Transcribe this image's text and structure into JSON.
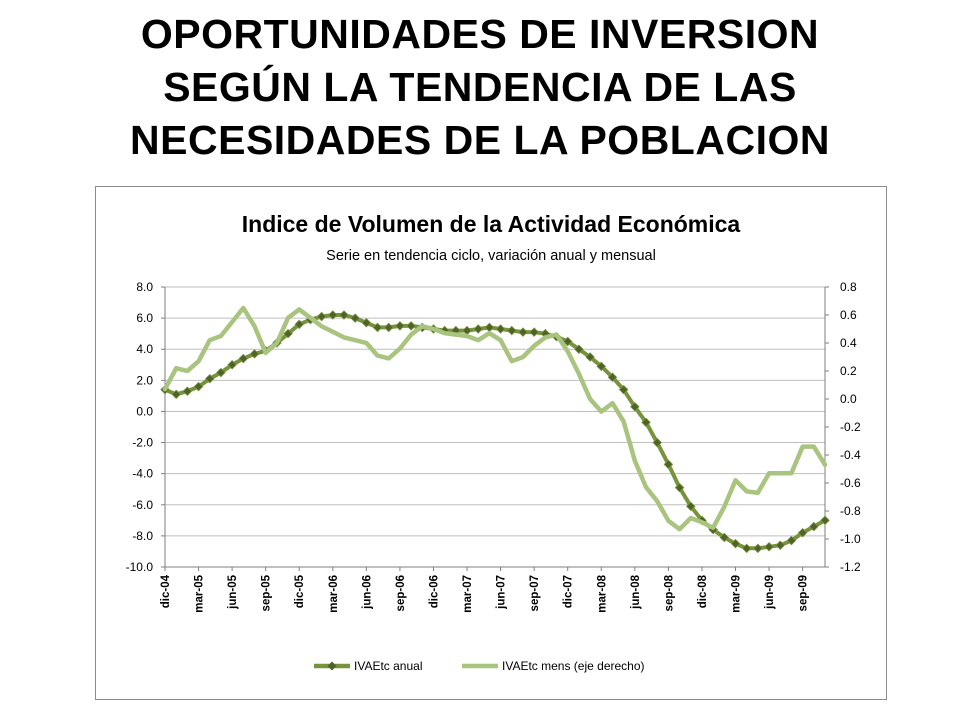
{
  "slide": {
    "title_lines": [
      "OPORTUNIDADES DE INVERSION",
      "SEGÚN LA TENDENCIA DE LAS",
      "NECESIDADES DE LA POBLACION"
    ]
  },
  "colors": {
    "annual_line": "#77933c",
    "annual_marker": "#4f6228",
    "monthly_line": "#a9c47f",
    "gridline": "#bfbfbf",
    "axis": "#7f7f7f"
  },
  "chart_data": {
    "type": "line",
    "title": "Indice de Volumen de la Actividad Económica",
    "subtitle": "Serie en tendencia ciclo, variación anual y mensual",
    "xlabel": "",
    "ylabel": "",
    "x_ticks": [
      "dic-04",
      "mar-05",
      "jun-05",
      "sep-05",
      "dic-05",
      "mar-06",
      "jun-06",
      "sep-06",
      "dic-06",
      "mar-07",
      "jun-07",
      "sep-07",
      "dic-07",
      "mar-08",
      "jun-08",
      "sep-08",
      "dic-08",
      "mar-09",
      "jun-09",
      "sep-09"
    ],
    "x": [
      "dic-04",
      "ene-05",
      "feb-05",
      "mar-05",
      "abr-05",
      "may-05",
      "jun-05",
      "jul-05",
      "ago-05",
      "sep-05",
      "oct-05",
      "nov-05",
      "dic-05",
      "ene-06",
      "feb-06",
      "mar-06",
      "abr-06",
      "may-06",
      "jun-06",
      "jul-06",
      "ago-06",
      "sep-06",
      "oct-06",
      "nov-06",
      "dic-06",
      "ene-07",
      "feb-07",
      "mar-07",
      "abr-07",
      "may-07",
      "jun-07",
      "jul-07",
      "ago-07",
      "sep-07",
      "oct-07",
      "nov-07",
      "dic-07",
      "ene-08",
      "feb-08",
      "mar-08",
      "abr-08",
      "may-08",
      "jun-08",
      "jul-08",
      "ago-08",
      "sep-08",
      "oct-08",
      "nov-08",
      "dic-08",
      "ene-09",
      "feb-09",
      "mar-09",
      "abr-09",
      "may-09",
      "jun-09",
      "jul-09",
      "ago-09",
      "sep-09",
      "oct-09",
      "nov-09"
    ],
    "y_left_ticks": [
      "8.0",
      "6.0",
      "4.0",
      "2.0",
      "0.0",
      "-2.0",
      "-4.0",
      "-6.0",
      "-8.0",
      "-10.0"
    ],
    "y_right_ticks": [
      "0.8",
      "0.6",
      "0.4",
      "0.2",
      "0.0",
      "-0.2",
      "-0.4",
      "-0.6",
      "-0.8",
      "-1.0",
      "-1.2"
    ],
    "ylim_left": [
      -10,
      8
    ],
    "ylim_right": [
      -1.2,
      0.8
    ],
    "grid": true,
    "legend_position": "bottom",
    "series": [
      {
        "name": "IVAEtc anual",
        "axis": "left",
        "marker": "diamond",
        "values": [
          1.4,
          1.1,
          1.3,
          1.6,
          2.1,
          2.5,
          3.0,
          3.4,
          3.7,
          3.9,
          4.4,
          5.0,
          5.6,
          5.9,
          6.1,
          6.2,
          6.2,
          6.0,
          5.7,
          5.4,
          5.4,
          5.5,
          5.5,
          5.4,
          5.3,
          5.2,
          5.2,
          5.2,
          5.3,
          5.4,
          5.3,
          5.2,
          5.1,
          5.1,
          5.0,
          4.8,
          4.5,
          4.0,
          3.5,
          2.9,
          2.2,
          1.4,
          0.3,
          -0.7,
          -2.0,
          -3.4,
          -4.9,
          -6.1,
          -7.0,
          -7.6,
          -8.1,
          -8.5,
          -8.8,
          -8.8,
          -8.7,
          -8.6,
          -8.3,
          -7.8,
          -7.4,
          -7.0
        ]
      },
      {
        "name": "IVAEtc mens (eje derecho)",
        "axis": "right",
        "marker": "none",
        "values": [
          0.07,
          0.22,
          0.2,
          0.27,
          0.42,
          0.45,
          0.55,
          0.65,
          0.52,
          0.33,
          0.4,
          0.58,
          0.64,
          0.58,
          0.52,
          0.48,
          0.44,
          0.42,
          0.4,
          0.31,
          0.29,
          0.36,
          0.46,
          0.52,
          0.5,
          0.47,
          0.46,
          0.45,
          0.42,
          0.47,
          0.42,
          0.27,
          0.3,
          0.38,
          0.44,
          0.46,
          0.34,
          0.18,
          0.0,
          -0.09,
          -0.03,
          -0.16,
          -0.44,
          -0.63,
          -0.73,
          -0.87,
          -0.93,
          -0.85,
          -0.88,
          -0.92,
          -0.77,
          -0.58,
          -0.66,
          -0.67,
          -0.53,
          -0.53,
          -0.53,
          -0.34,
          -0.34,
          -0.47
        ]
      }
    ]
  }
}
